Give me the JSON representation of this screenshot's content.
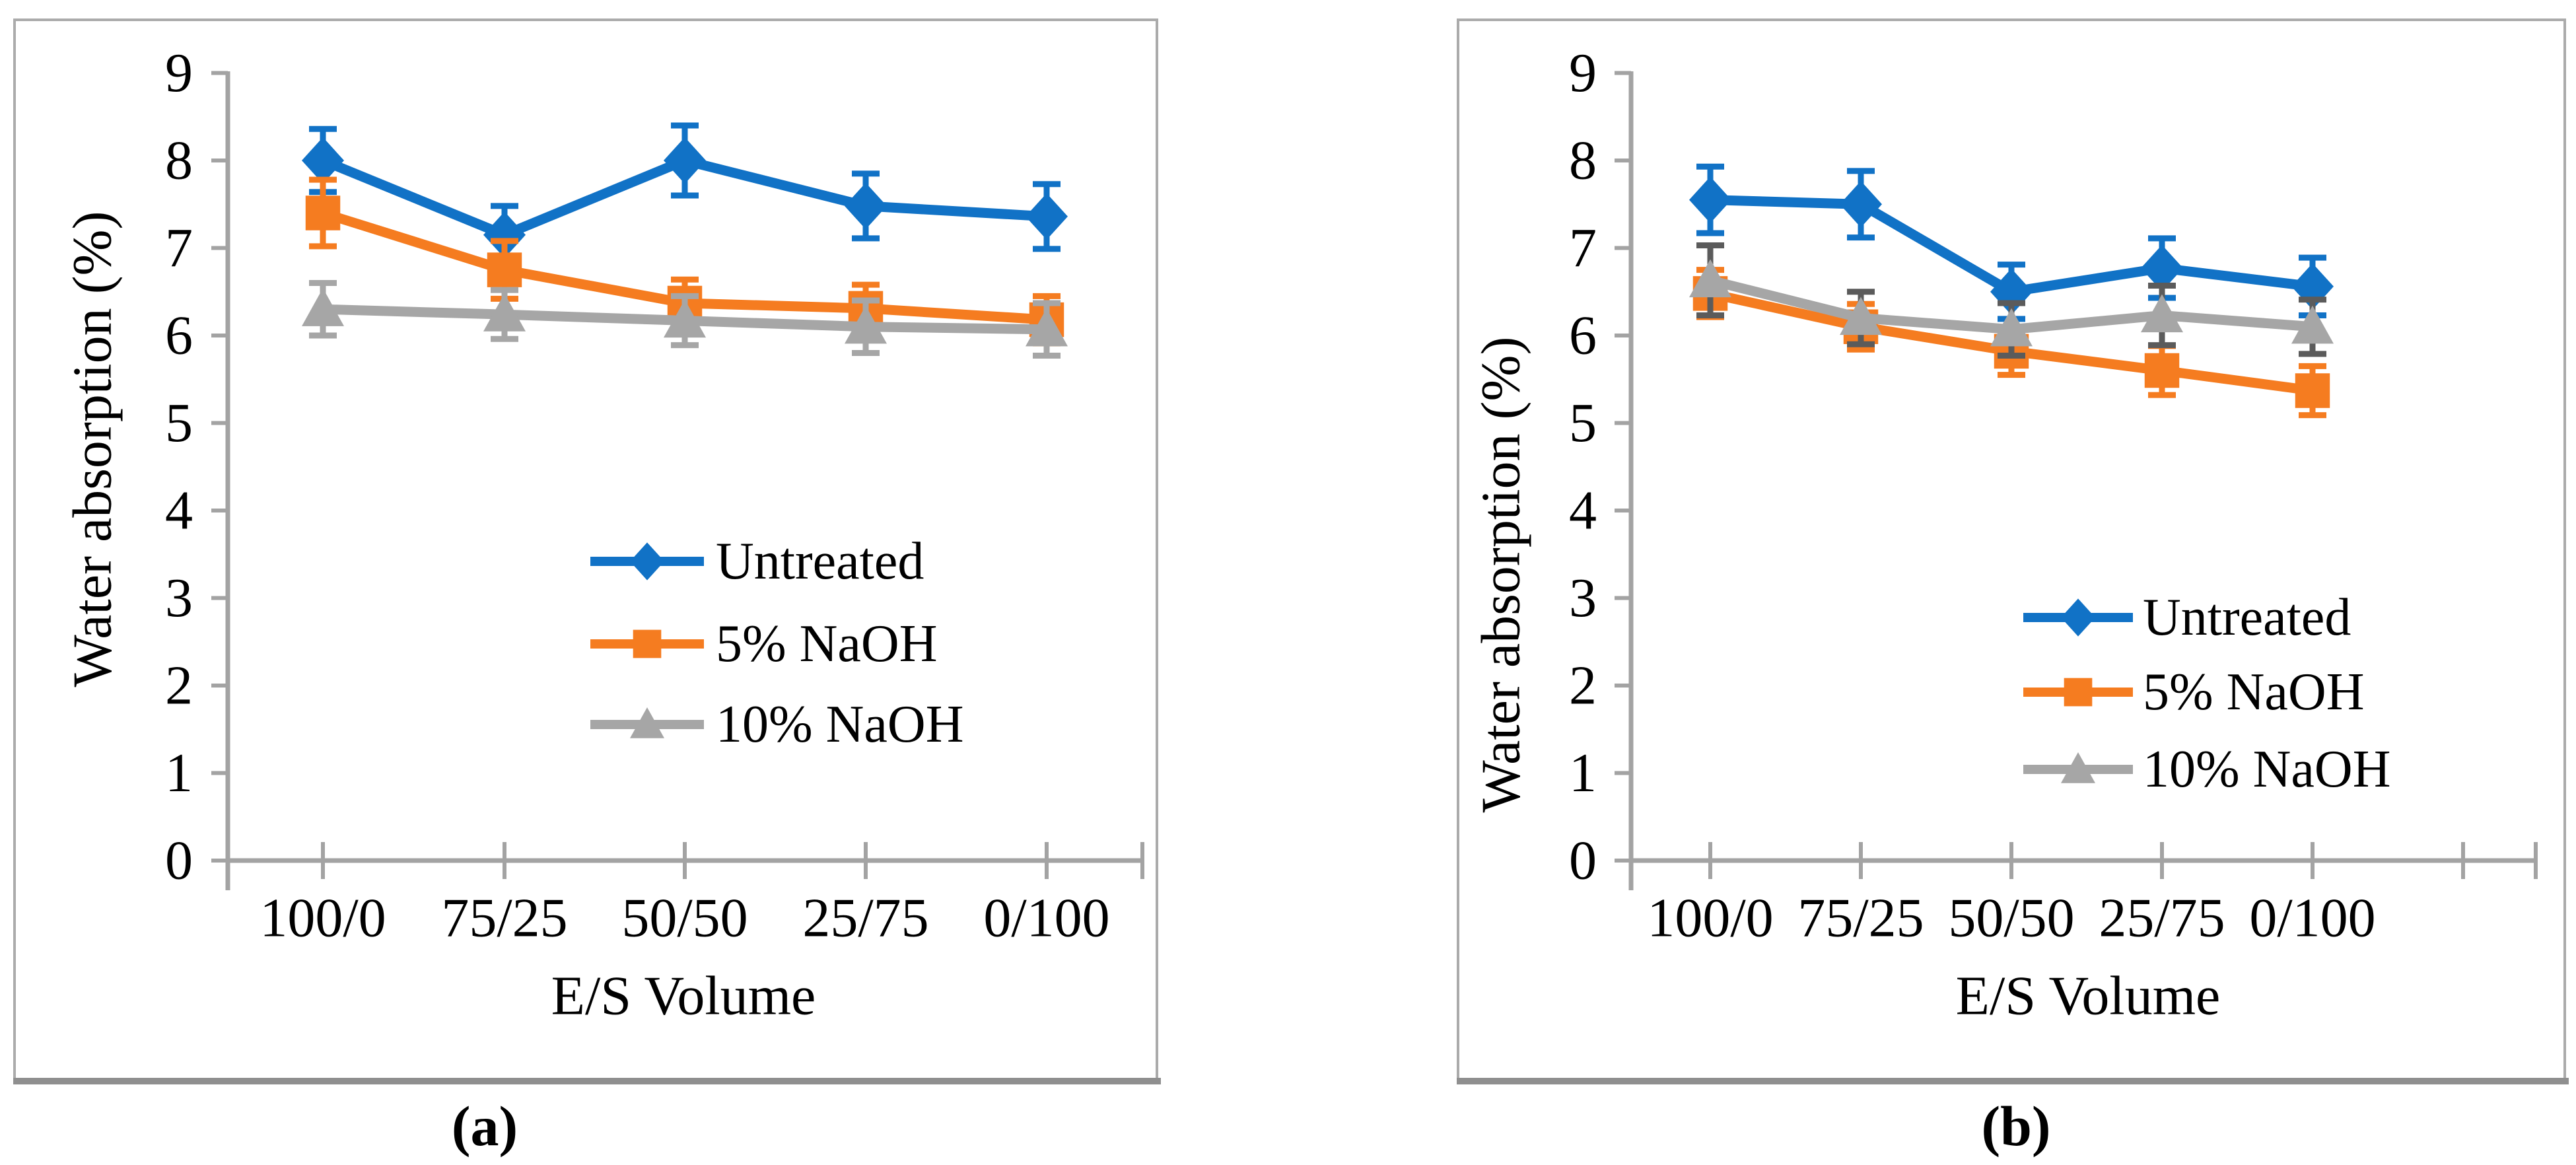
{
  "figure": {
    "background": "#ffffff",
    "axis_color": "#A3A3A3",
    "text_color": "#000000"
  },
  "chart_data": [
    {
      "id": "a",
      "type": "line",
      "caption": "(a)",
      "xlabel": "E/S Volume",
      "ylabel": "Water absorption (%)",
      "ylim": [
        0,
        9
      ],
      "ytick_labels": [
        "0",
        "1",
        "2",
        "3",
        "4",
        "5",
        "6",
        "7",
        "8",
        "9"
      ],
      "categories": [
        "100/0",
        "75/25",
        "50/50",
        "25/75",
        "0/100"
      ],
      "grid": false,
      "legend_position": "inside-center-right",
      "series": [
        {
          "name": "Untreated",
          "marker": "diamond",
          "color": "#1172C6",
          "error_color": "#1172C6",
          "values": [
            8.0,
            7.15,
            8.0,
            7.48,
            7.36
          ],
          "errors": [
            0.36,
            0.33,
            0.4,
            0.37,
            0.37
          ]
        },
        {
          "name": "5% NaOH",
          "marker": "square",
          "color": "#F57C20",
          "error_color": "#F57C20",
          "values": [
            7.4,
            6.75,
            6.37,
            6.31,
            6.18
          ],
          "errors": [
            0.38,
            0.33,
            0.27,
            0.27,
            0.27
          ]
        },
        {
          "name": "10% NaOH",
          "marker": "triangle",
          "color": "#A6A6A6",
          "error_color": "#A6A6A6",
          "values": [
            6.3,
            6.24,
            6.17,
            6.1,
            6.07
          ],
          "errors": [
            0.3,
            0.28,
            0.28,
            0.3,
            0.3
          ]
        }
      ]
    },
    {
      "id": "b",
      "type": "line",
      "caption": "(b)",
      "xlabel": "E/S Volume",
      "ylabel": "Water absorption (%)",
      "ylim": [
        0,
        9
      ],
      "ytick_labels": [
        "0",
        "1",
        "2",
        "3",
        "4",
        "5",
        "6",
        "7",
        "8",
        "9"
      ],
      "categories": [
        "100/0",
        "75/25",
        "50/50",
        "25/75",
        "0/100"
      ],
      "grid": false,
      "legend_position": "inside-center-right",
      "series": [
        {
          "name": "Untreated",
          "marker": "diamond",
          "color": "#1172C6",
          "error_color": "#1172C6",
          "values": [
            7.55,
            7.5,
            6.5,
            6.77,
            6.56
          ],
          "errors": [
            0.38,
            0.38,
            0.31,
            0.34,
            0.33
          ]
        },
        {
          "name": "5% NaOH",
          "marker": "square",
          "color": "#F57C20",
          "error_color": "#F57C20",
          "values": [
            6.48,
            6.1,
            5.82,
            5.6,
            5.37
          ],
          "errors": [
            0.27,
            0.26,
            0.27,
            0.28,
            0.28
          ]
        },
        {
          "name": "10% NaOH",
          "marker": "triangle",
          "color": "#A6A6A6",
          "error_color": "#5B5B5B",
          "values": [
            6.63,
            6.2,
            6.07,
            6.23,
            6.1
          ],
          "errors": [
            0.4,
            0.3,
            0.3,
            0.34,
            0.31
          ]
        }
      ]
    }
  ]
}
